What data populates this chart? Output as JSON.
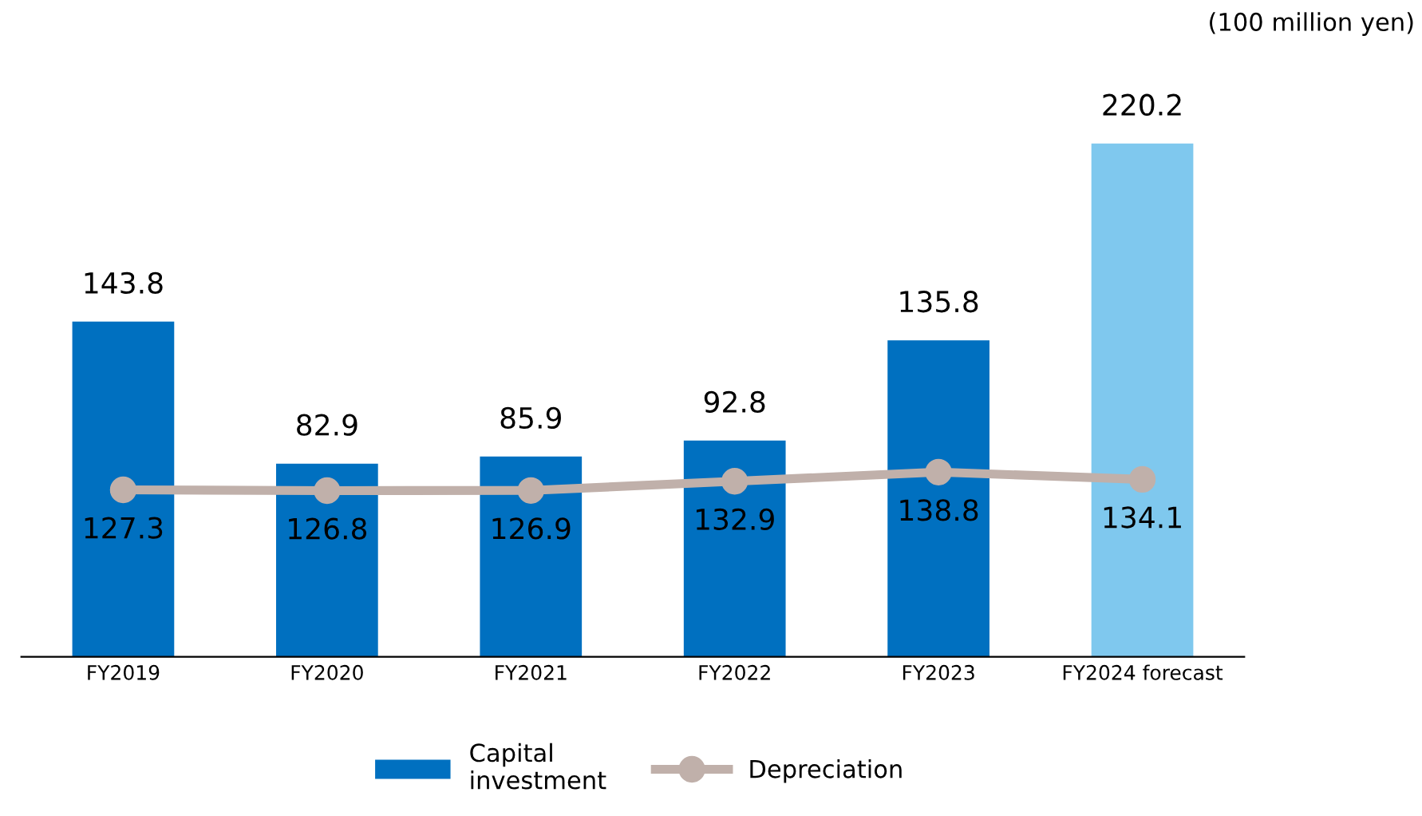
{
  "chart_data": {
    "type": "bar",
    "categories": [
      "FY2019",
      "FY2020",
      "FY2021",
      "FY2022",
      "FY2023",
      "FY2024 forecast"
    ],
    "series": [
      {
        "name": "Capital\ninvestment",
        "color": "#0070c0",
        "colors": [
          "#0070c0",
          "#0070c0",
          "#0070c0",
          "#0070c0",
          "#0070c0",
          "#7fc8ee"
        ],
        "values": [
          143.8,
          82.9,
          85.9,
          92.8,
          135.8,
          220.2
        ]
      },
      {
        "name": "Depreciation",
        "type": "line",
        "axis": "y2",
        "color": "#c0b0aa",
        "marker": "circle",
        "values": [
          127.3,
          126.8,
          126.9,
          132.9,
          138.8,
          134.1
        ]
      }
    ],
    "data_labels": true,
    "tick_labels": "x",
    "grid": false,
    "legend": "bottom",
    "annotations": [
      "(100 million yen)"
    ]
  }
}
